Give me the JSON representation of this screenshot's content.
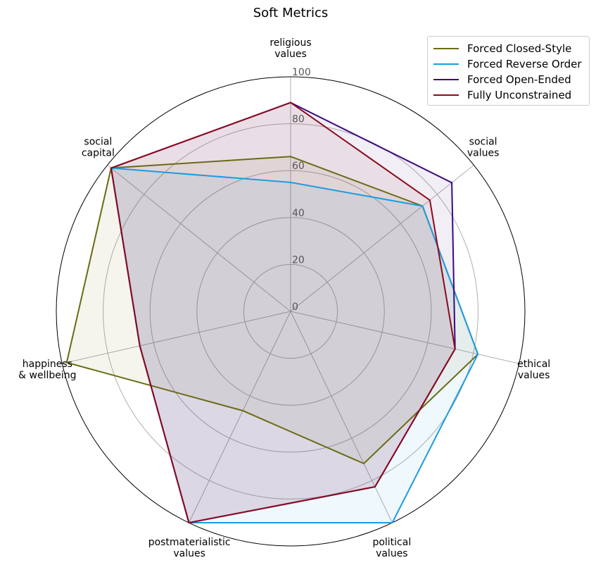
{
  "chart_data": {
    "type": "radar",
    "title": "Soft Metrics",
    "axes": [
      [
        "religious",
        "values"
      ],
      [
        "social",
        "values"
      ],
      [
        "ethical",
        "values"
      ],
      [
        "political",
        "values"
      ],
      [
        "postmaterialistic",
        "values"
      ],
      [
        "happiness",
        "& wellbeing"
      ],
      [
        "social",
        "capital"
      ]
    ],
    "rlim": [
      0,
      100
    ],
    "rticks": [
      "0",
      "20",
      "40",
      "60",
      "80",
      "100"
    ],
    "grid": true,
    "legend_position": "top-right",
    "series": [
      {
        "name": "Forced Closed-Style",
        "color": "#6b6b14",
        "values": [
          66,
          72,
          82,
          72,
          47,
          98,
          98
        ]
      },
      {
        "name": "Forced Reverse Order",
        "color": "#1b9de0",
        "values": [
          55,
          72,
          82,
          100,
          100,
          66,
          98
        ]
      },
      {
        "name": "Forced Open-Ended",
        "color": "#3b0a80",
        "values": [
          89,
          88,
          72,
          83,
          100,
          66,
          98
        ]
      },
      {
        "name": "Fully Unconstrained",
        "color": "#8b0a1e",
        "values": [
          89,
          76,
          72,
          83,
          100,
          66,
          98
        ]
      }
    ]
  }
}
